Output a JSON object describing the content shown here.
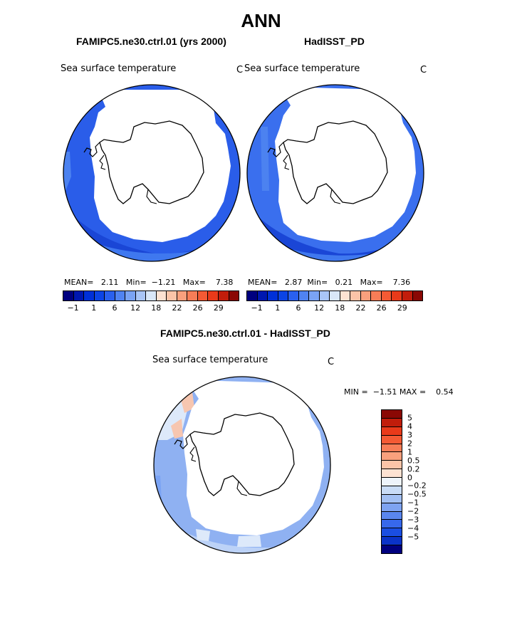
{
  "figure": {
    "title": "ANN"
  },
  "panels": [
    {
      "title": "FAMIPC5.ne30.ctrl.01 (yrs 2000)",
      "variable": "Sea surface temperature",
      "unit": "C",
      "stats": {
        "mean_label": "MEAN=",
        "mean": "2.11",
        "min_label": "Min=",
        "min": "−1.21",
        "max_label": "Max=",
        "max": "7.38"
      }
    },
    {
      "title": "HadISST_PD",
      "variable": "Sea surface temperature",
      "unit": "C",
      "stats": {
        "mean_label": "MEAN=",
        "mean": "2.87",
        "min_label": "Min=",
        "min": "0.21",
        "max_label": "Max=",
        "max": "7.36"
      }
    },
    {
      "title": "FAMIPC5.ne30.ctrl.01 - HadISST_PD",
      "variable": "Sea surface temperature",
      "unit": "C",
      "stats": {
        "min_label": "MIN =",
        "min": "−1.51",
        "max_label": "MAX =",
        "max": "0.54"
      }
    }
  ],
  "colorbar_abs": {
    "colors": [
      "#00007f",
      "#0017b0",
      "#0030d8",
      "#0c44e5",
      "#2a60ee",
      "#5083f2",
      "#7aa3f4",
      "#a9c5f6",
      "#d9e7f8",
      "#fde2d2",
      "#fbc4a8",
      "#f9a07d",
      "#f77d57",
      "#f45a34",
      "#e93a1a",
      "#c11d0b",
      "#8a0804"
    ],
    "tick_labels": [
      "−1",
      "1",
      "6",
      "12",
      "18",
      "22",
      "26",
      "29"
    ]
  },
  "colorbar_diff": {
    "colors": [
      "#8a0804",
      "#c11d0b",
      "#e93a1a",
      "#f45a34",
      "#f77d57",
      "#f9a07d",
      "#fbc4a8",
      "#fde2d2",
      "#eef4fb",
      "#c9dcf6",
      "#a3c0f3",
      "#7ea3f1",
      "#5a86ee",
      "#3768eb",
      "#1a4ee2",
      "#0a33c8",
      "#00007f"
    ],
    "tick_labels": [
      "5",
      "4",
      "3",
      "2",
      "1",
      "0.5",
      "0.2",
      "0",
      "−0.2",
      "−0.5",
      "−1",
      "−2",
      "−3",
      "−4",
      "−5"
    ]
  },
  "map_fill_colors": {
    "ocean_dark": "#1e4fe6",
    "ocean_mid": "#3468ec",
    "ocean_light": "#5a86ef",
    "diff_base": "#8fb1f2",
    "diff_light": "#bcd2f7",
    "diff_pale": "#dde9fa",
    "diff_warm": "#f7c6b0"
  }
}
